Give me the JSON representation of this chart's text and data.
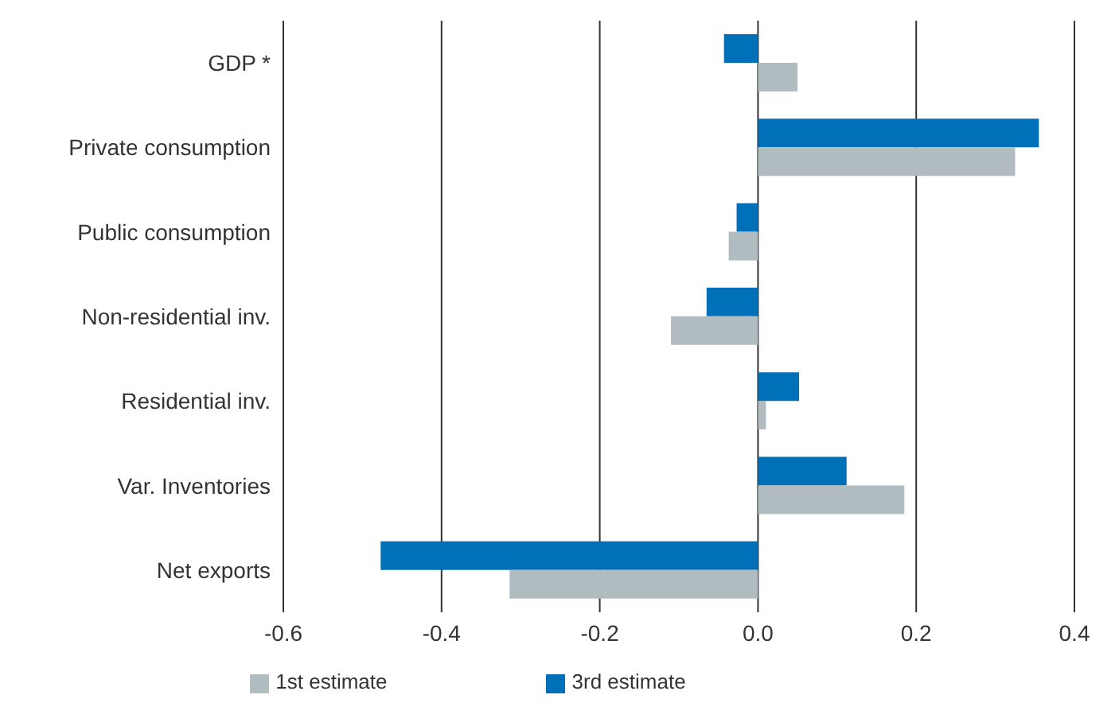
{
  "chart_data": {
    "type": "bar",
    "orientation": "horizontal",
    "categories": [
      "GDP *",
      "Private consumption",
      "Public consumption",
      "Non-residential inv.",
      "Residential inv.",
      "Var. Inventories",
      "Net exports"
    ],
    "series": [
      {
        "name": "3rd estimate",
        "color": "#0070b8",
        "values": [
          -0.043,
          0.355,
          -0.027,
          -0.065,
          0.052,
          0.112,
          -0.477
        ]
      },
      {
        "name": "1st estimate",
        "color": "#b0bcc0",
        "values": [
          0.05,
          0.325,
          -0.037,
          -0.11,
          0.01,
          0.185,
          -0.314
        ]
      }
    ],
    "xlim": [
      -0.6,
      0.4
    ],
    "xticks": [
      -0.6,
      -0.4,
      -0.2,
      {
        "value": 0,
        "label": "0.0"
      },
      0.2,
      0.4
    ],
    "grid": "x",
    "legend": "bottom"
  }
}
